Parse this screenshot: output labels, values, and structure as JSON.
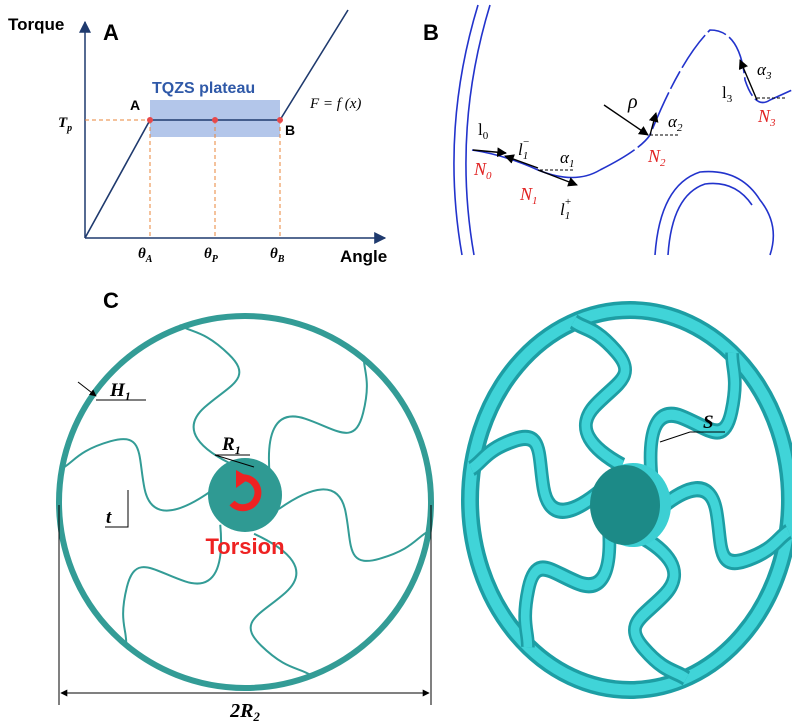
{
  "panel_a": {
    "label": "A",
    "y_axis": "Torque",
    "x_axis": "Angle",
    "plateau": "TQZS plateau",
    "point_a": "A",
    "point_b": "B",
    "tp": {
      "main": "T",
      "sub": "p"
    },
    "function": "F = f (x)",
    "theta_a": {
      "main": "θ",
      "sub": "A"
    },
    "theta_p": {
      "main": "θ",
      "sub": "P"
    },
    "theta_b": {
      "main": "θ",
      "sub": "B"
    }
  },
  "panel_b": {
    "label": "B",
    "l0": {
      "main": "l",
      "sub": "0"
    },
    "l1_minus": {
      "main": "l",
      "sub": "1",
      "sup": "−"
    },
    "l1_plus": {
      "main": "l",
      "sub": "1",
      "sup": "+"
    },
    "alpha1": {
      "main": "α",
      "sub": "1"
    },
    "rho": "ρ",
    "alpha2": {
      "main": "α",
      "sub": "2"
    },
    "l3": {
      "main": "l",
      "sub": "3"
    },
    "alpha3": {
      "main": "α",
      "sub": "3"
    },
    "n0": {
      "main": "N",
      "sub": "0"
    },
    "n1": {
      "main": "N",
      "sub": "1"
    },
    "n2": {
      "main": "N",
      "sub": "2"
    },
    "n3": {
      "main": "N",
      "sub": "3"
    }
  },
  "panel_c": {
    "label": "C",
    "h1": {
      "main": "H",
      "sub": "1"
    },
    "r1": {
      "main": "R",
      "sub": "1"
    },
    "t": "t",
    "torsion": "Torsion",
    "s": "S",
    "diameter": {
      "main": "2R",
      "sub": "2"
    }
  }
}
